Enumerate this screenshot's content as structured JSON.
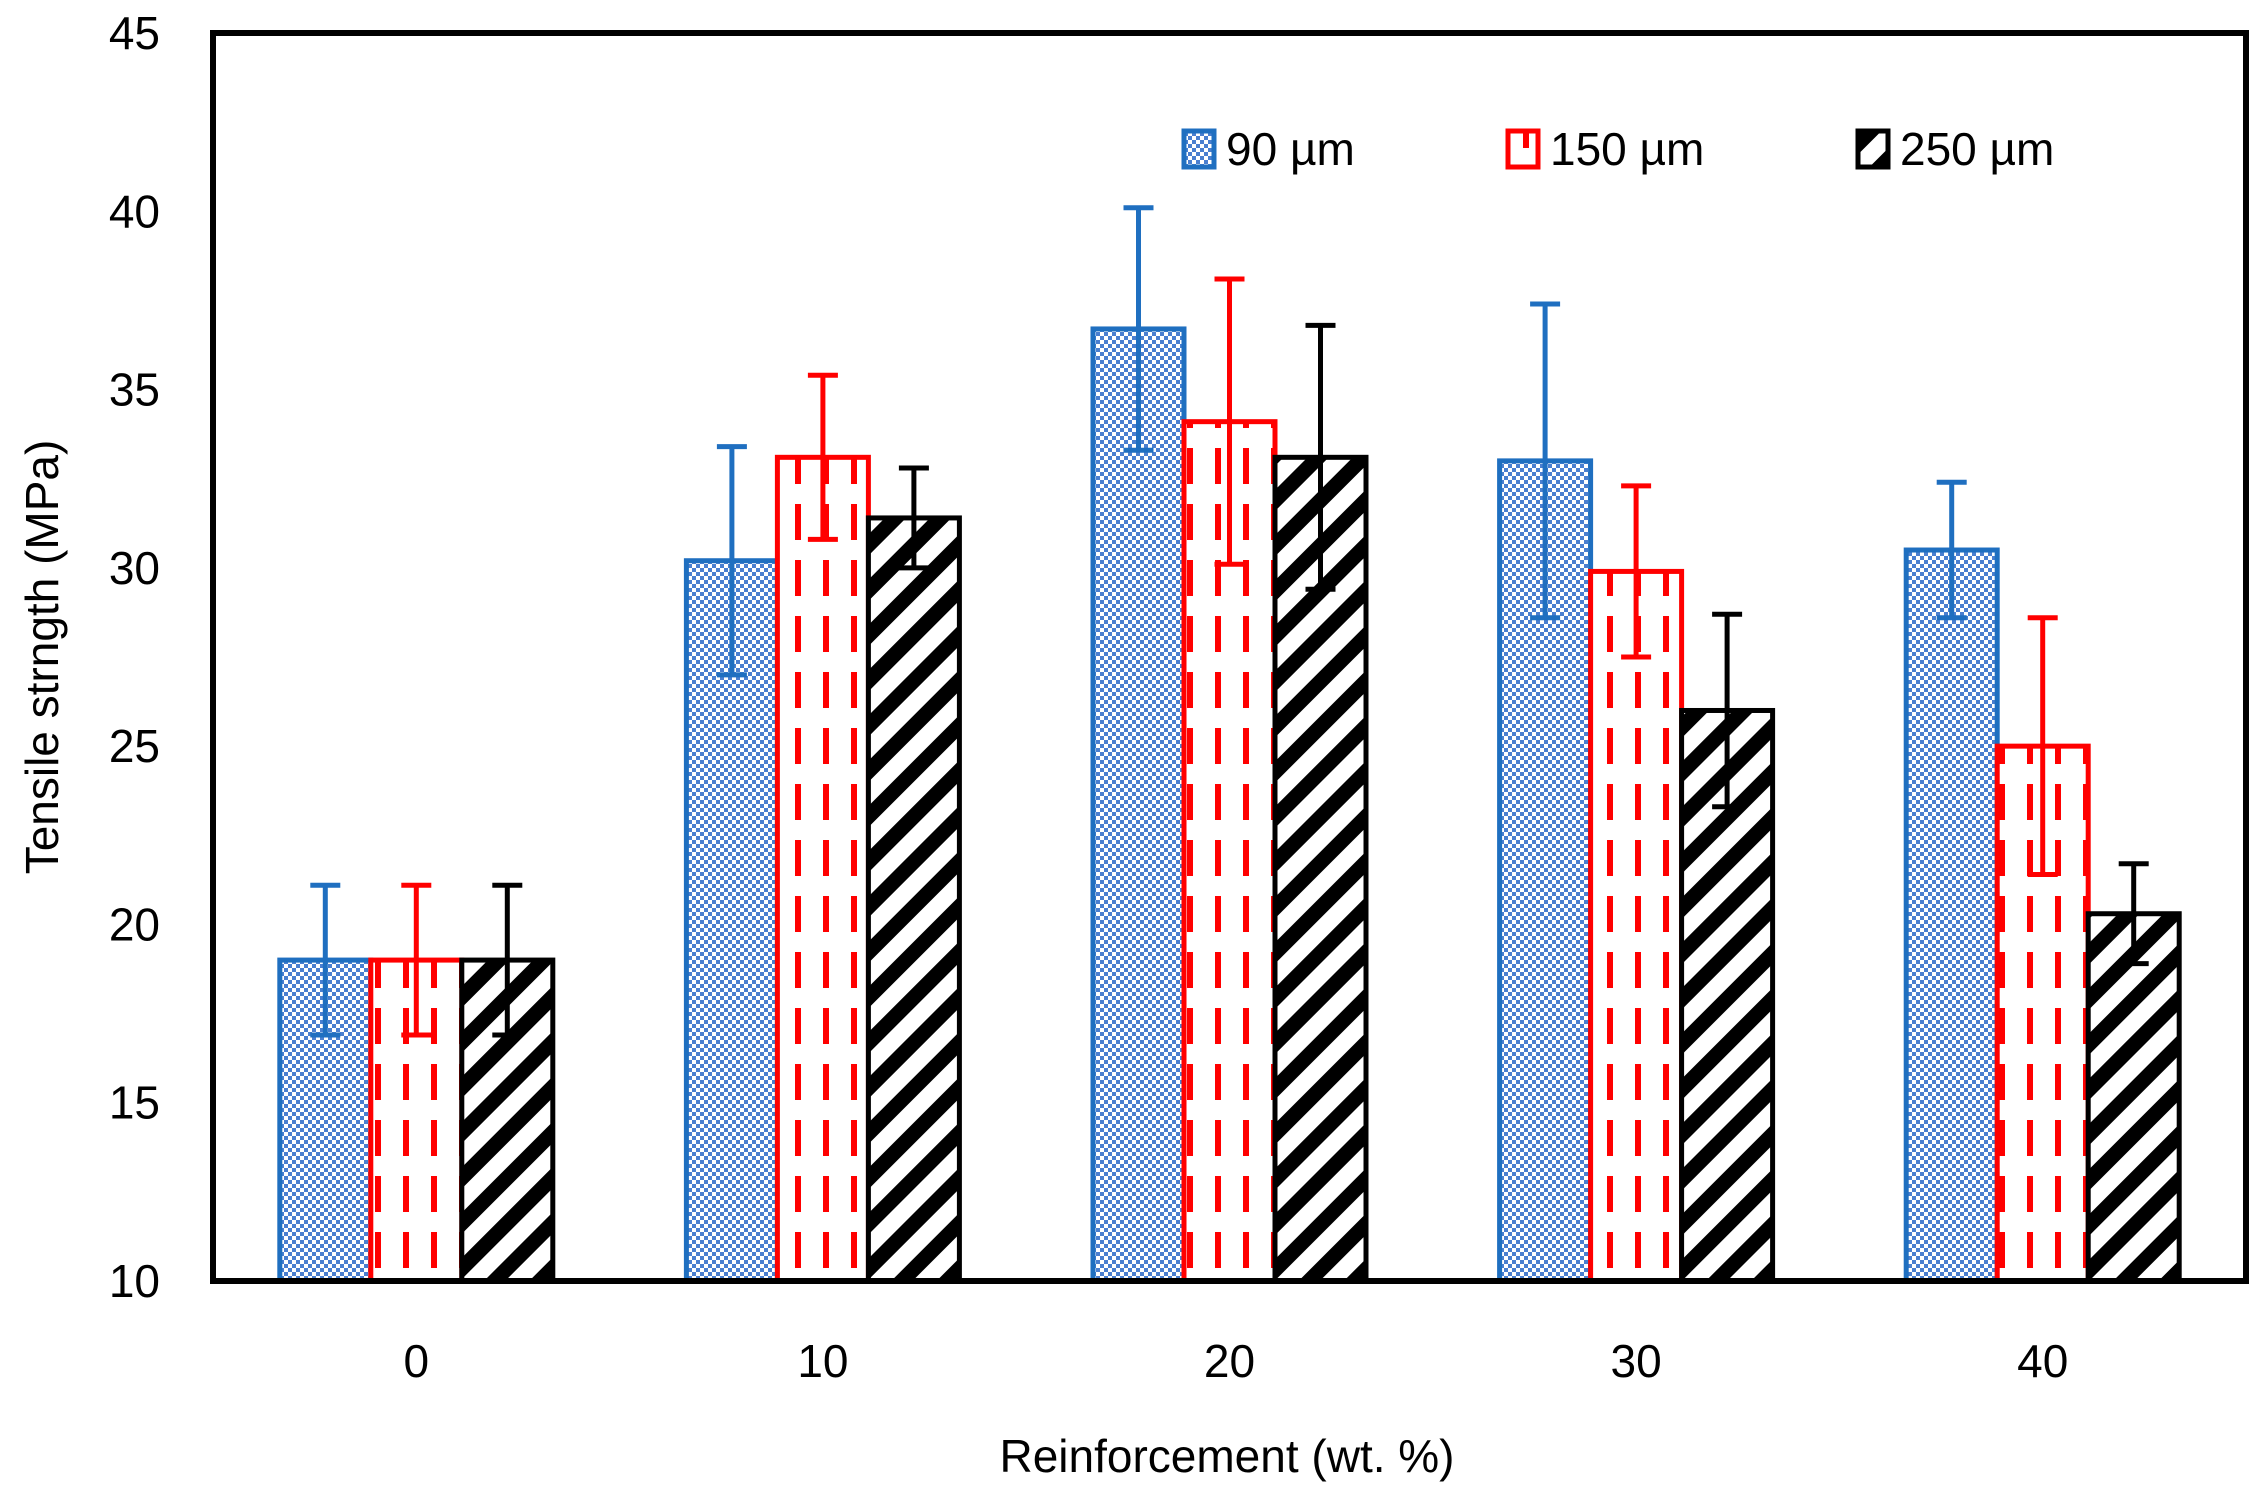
{
  "chart_data": {
    "type": "bar",
    "title": "",
    "xlabel": "Reinforcement  (wt. %)",
    "ylabel": "Tensile strngth (MPa)",
    "ylim": [
      10,
      45
    ],
    "yticks": [
      10,
      15,
      20,
      25,
      30,
      35,
      40,
      45
    ],
    "grid": false,
    "legend_position": "top-right",
    "categories": [
      "0",
      "10",
      "20",
      "30",
      "40"
    ],
    "series": [
      {
        "name": "90 µm",
        "color": "#1f6fc0",
        "pattern": "checker",
        "values": [
          19.0,
          30.2,
          36.7,
          33.0,
          30.5
        ],
        "errors": [
          2.1,
          3.2,
          3.4,
          4.4,
          1.9
        ]
      },
      {
        "name": "150 µm",
        "color": "#ff0000",
        "pattern": "dashed-vertical",
        "values": [
          19.0,
          33.1,
          34.1,
          29.9,
          25.0
        ],
        "errors": [
          2.1,
          2.3,
          4.0,
          2.4,
          3.6
        ]
      },
      {
        "name": "250 µm",
        "color": "#000000",
        "pattern": "diagonal-stripes",
        "values": [
          19.0,
          31.4,
          33.1,
          26.0,
          20.3
        ],
        "errors": [
          2.1,
          1.4,
          3.7,
          2.7,
          1.4
        ]
      }
    ]
  }
}
